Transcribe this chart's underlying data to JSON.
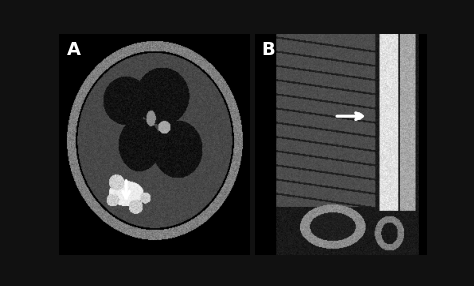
{
  "background_color": "#111111",
  "label_A": "A",
  "label_B": "B",
  "label_fontsize": 13,
  "label_color": "white",
  "label_fontweight": "bold"
}
